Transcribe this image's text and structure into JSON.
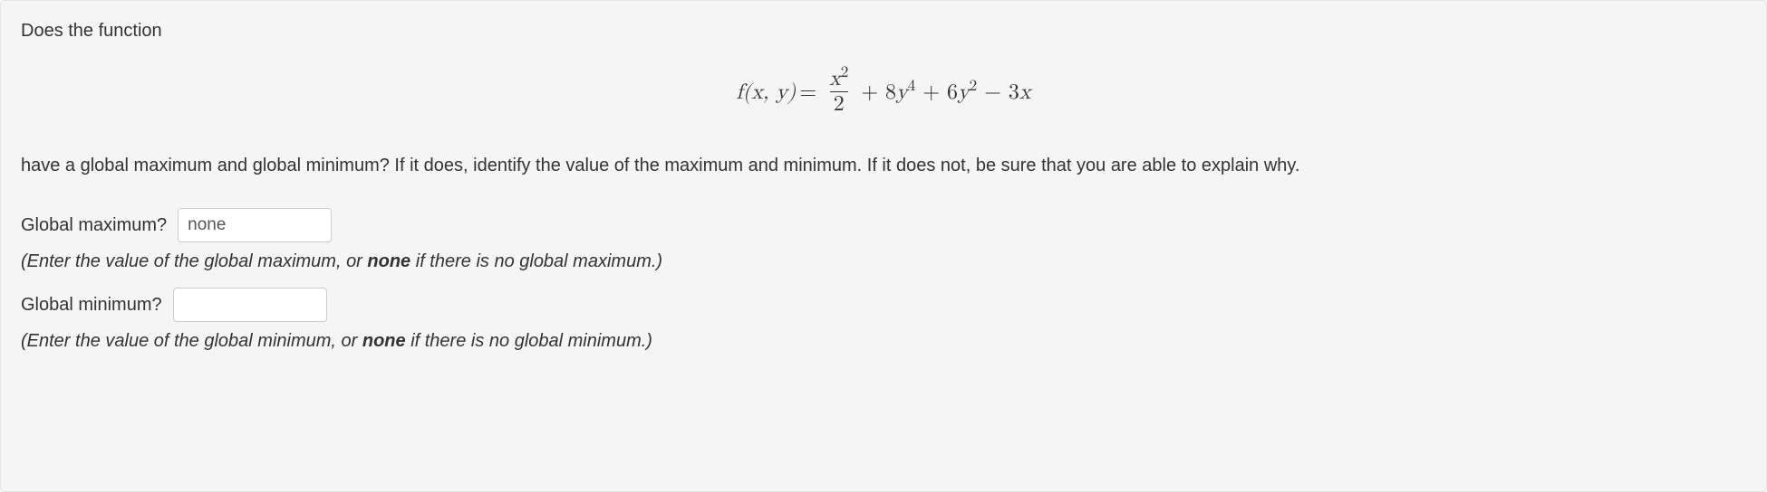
{
  "intro": "Does the function",
  "formula": {
    "lhs_fn": "f",
    "lhs_args": "(x, y)",
    "eq": " = ",
    "frac_num_base": "x",
    "frac_num_exp": "2",
    "frac_den": "2",
    "tail_a": " + 8",
    "tail_b_base": "y",
    "tail_b_exp": "4",
    "tail_c": " + 6",
    "tail_d_base": "y",
    "tail_d_exp": "2",
    "tail_e": " − 3",
    "tail_f_base": "x"
  },
  "explain": "have a global maximum and global minimum? If it does, identify the value of the maximum and minimum. If it does not, be sure that you are able to explain why.",
  "q_max": {
    "label": "Global maximum?",
    "value": "none",
    "hint_pre": "(Enter the value of the global maximum, or ",
    "hint_bold": "none",
    "hint_post": " if there is no global maximum.)"
  },
  "q_min": {
    "label": "Global minimum?",
    "value": "",
    "hint_pre": "(Enter the value of the global minimum, or ",
    "hint_bold": "none",
    "hint_post": " if there is no global minimum.)"
  }
}
